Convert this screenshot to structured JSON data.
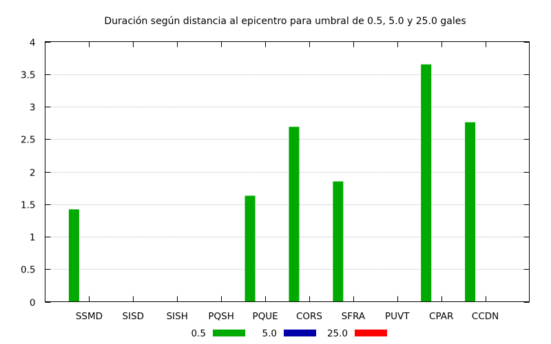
{
  "chart_data": {
    "type": "bar",
    "title": "Duración según distancia al epicentro para umbral de 0.5, 5.0 y 25.0 gales",
    "xlabel": "",
    "ylabel": "",
    "ylim": [
      0,
      4
    ],
    "yticks": [
      0,
      0.5,
      1,
      1.5,
      2,
      2.5,
      3,
      3.5,
      4
    ],
    "ytick_labels": [
      "0",
      "0.5",
      "1",
      "1.5",
      "2",
      "2.5",
      "3",
      "3.5",
      "4"
    ],
    "grid": "horizontal dotted",
    "legend_position": "bottom",
    "categories": [
      "SSMD",
      "SISD",
      "SISH",
      "PQSH",
      "PQUE",
      "CORS",
      "SFRA",
      "PUVT",
      "CPAR",
      "CCDN"
    ],
    "series": [
      {
        "name": "0.5",
        "color": "#00aa00",
        "values": [
          1.42,
          0,
          0,
          0,
          1.63,
          2.69,
          1.85,
          0,
          3.65,
          2.76
        ]
      },
      {
        "name": "5.0",
        "color": "#0000aa",
        "values": [
          0,
          0,
          0,
          0,
          0,
          0,
          0,
          0,
          0,
          0
        ]
      },
      {
        "name": "25.0",
        "color": "#ff0000",
        "values": [
          0,
          0,
          0,
          0,
          0,
          0,
          0,
          0,
          0,
          0
        ]
      }
    ]
  }
}
